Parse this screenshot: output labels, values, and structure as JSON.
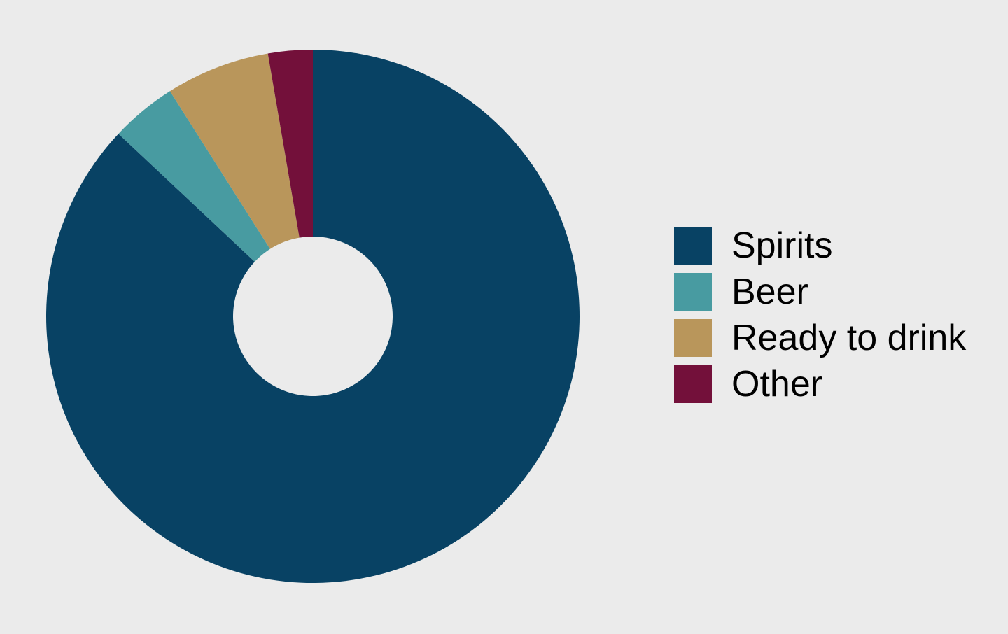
{
  "chart_data": {
    "type": "pie",
    "variant": "donut",
    "title": "",
    "start_angle": "12 o'clock",
    "direction": "clockwise",
    "legend_position": "right",
    "categories": [
      "Spirits",
      "Beer",
      "Ready to drink",
      "Other"
    ],
    "values": [
      87.0,
      4.0,
      6.3,
      2.7
    ],
    "colors": [
      "#084264",
      "#489ba1",
      "#b9965b",
      "#73103a"
    ],
    "background": "#ebebeb"
  }
}
